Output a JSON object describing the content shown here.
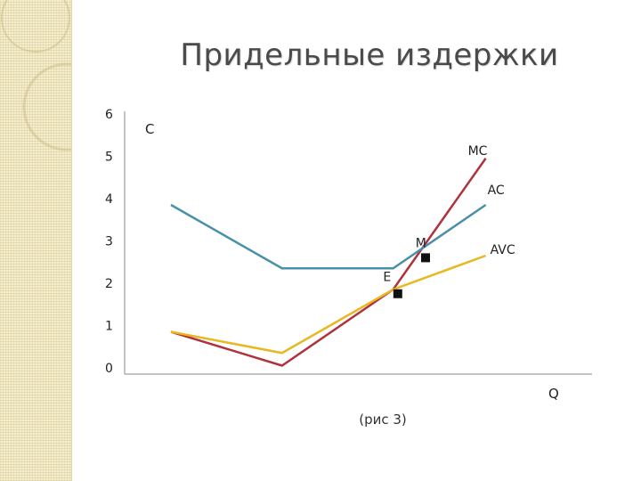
{
  "slide": {
    "title": "Придельные издержки",
    "caption": "(рис 3)"
  },
  "colors": {
    "MC": "#b0323a",
    "AC": "#4a90a8",
    "AVC": "#e8b820",
    "axis": "#888888",
    "strip": "#f4edcf"
  },
  "chart_data": {
    "type": "line",
    "title": "Придельные издержки",
    "xlabel": "Q",
    "ylabel": "C",
    "ylim": [
      0,
      6
    ],
    "xlim": [
      0,
      5
    ],
    "yticks": [
      "0",
      "1",
      "2",
      "3",
      "4",
      "5",
      "6"
    ],
    "grid": false,
    "series": [
      {
        "name": "MC",
        "points": [
          [
            0.5,
            1
          ],
          [
            1.7,
            0.2
          ],
          [
            2.9,
            2
          ],
          [
            3.9,
            5.1
          ]
        ]
      },
      {
        "name": "AC",
        "points": [
          [
            0.5,
            4
          ],
          [
            1.7,
            2.5
          ],
          [
            2.9,
            2.5
          ],
          [
            3.9,
            4
          ]
        ]
      },
      {
        "name": "AVC",
        "points": [
          [
            0.5,
            1
          ],
          [
            1.7,
            0.5
          ],
          [
            2.9,
            2
          ],
          [
            3.9,
            2.8
          ]
        ]
      }
    ],
    "annotations": [
      {
        "label": "M",
        "x": 3.2,
        "y": 3,
        "marker_x": 3.25,
        "marker_y": 2.75
      },
      {
        "label": "E",
        "x": 2.85,
        "y": 2.2,
        "marker_x": 2.95,
        "marker_y": 1.9
      }
    ]
  }
}
